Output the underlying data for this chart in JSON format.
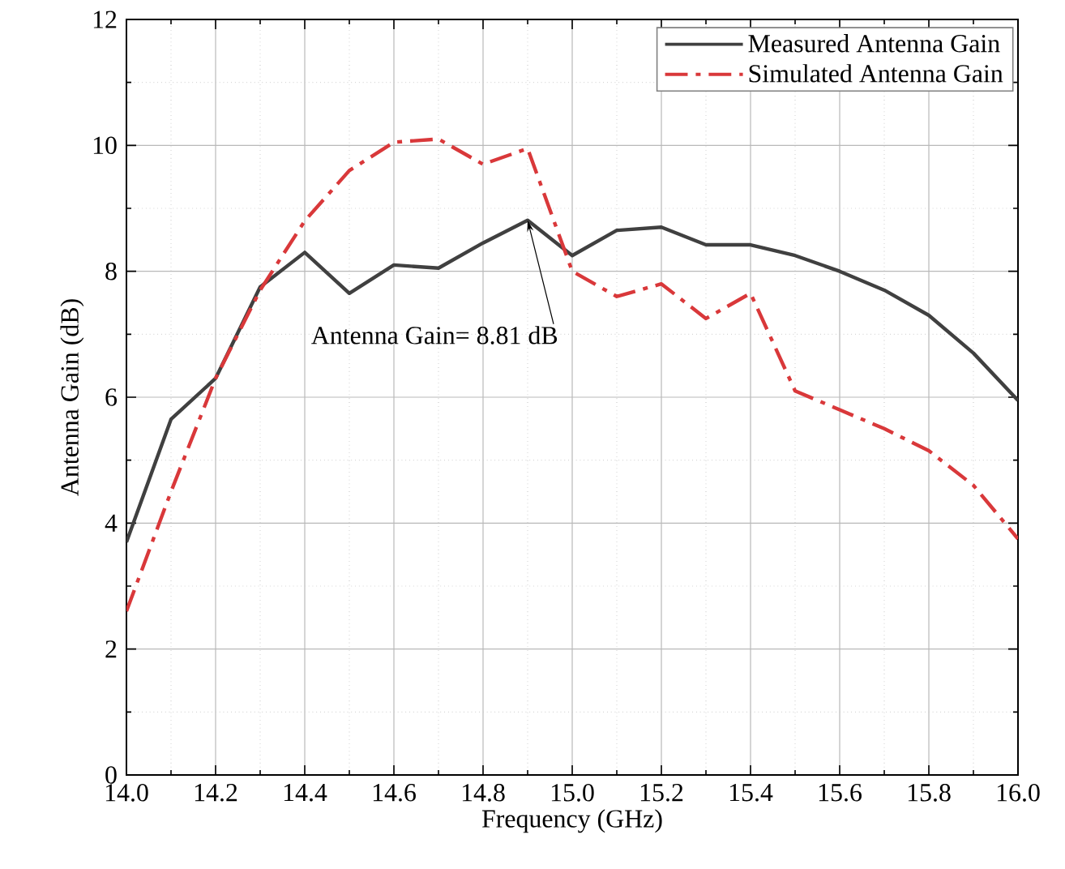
{
  "chart_data": {
    "type": "line",
    "xlabel": "Frequency (GHz)",
    "ylabel": "Antenna Gain (dB)",
    "x": [
      14.0,
      14.1,
      14.2,
      14.3,
      14.4,
      14.5,
      14.6,
      14.7,
      14.8,
      14.9,
      15.0,
      15.1,
      15.2,
      15.3,
      15.4,
      15.5,
      15.6,
      15.7,
      15.8,
      15.9,
      16.0
    ],
    "series": [
      {
        "name": "Measured Antenna Gain",
        "color": "#404040",
        "line_style": "solid",
        "values": [
          3.7,
          5.65,
          6.3,
          7.75,
          8.3,
          7.65,
          8.1,
          8.05,
          8.45,
          8.81,
          8.25,
          8.65,
          8.7,
          8.42,
          8.42,
          8.25,
          8.0,
          7.7,
          7.3,
          6.7,
          5.95
        ]
      },
      {
        "name": "Simulated Antenna Gain",
        "color": "#d9383a",
        "line_style": "dashdot",
        "values": [
          2.6,
          4.5,
          6.3,
          7.7,
          8.8,
          9.6,
          10.05,
          10.1,
          9.7,
          9.95,
          8.0,
          7.6,
          7.8,
          7.25,
          7.65,
          6.1,
          5.8,
          5.5,
          5.15,
          4.6,
          3.75
        ]
      }
    ],
    "xlim": [
      14.0,
      16.0
    ],
    "ylim": [
      0,
      12
    ],
    "xticks": [
      {
        "value": 14.0,
        "label": "14.0"
      },
      14.2,
      14.4,
      14.6,
      14.8,
      {
        "value": 15.0,
        "label": "15.0"
      },
      15.2,
      15.4,
      15.6,
      15.8,
      {
        "value": 16.0,
        "label": "16.0"
      }
    ],
    "yticks": [
      0,
      2,
      4,
      6,
      8,
      10,
      12
    ],
    "grid": true,
    "legend": "top right",
    "marker": "none",
    "annotations": [
      {
        "text": "Antenna Gain= 8.81 dB",
        "x": 14.9,
        "y": 8.81
      }
    ]
  }
}
